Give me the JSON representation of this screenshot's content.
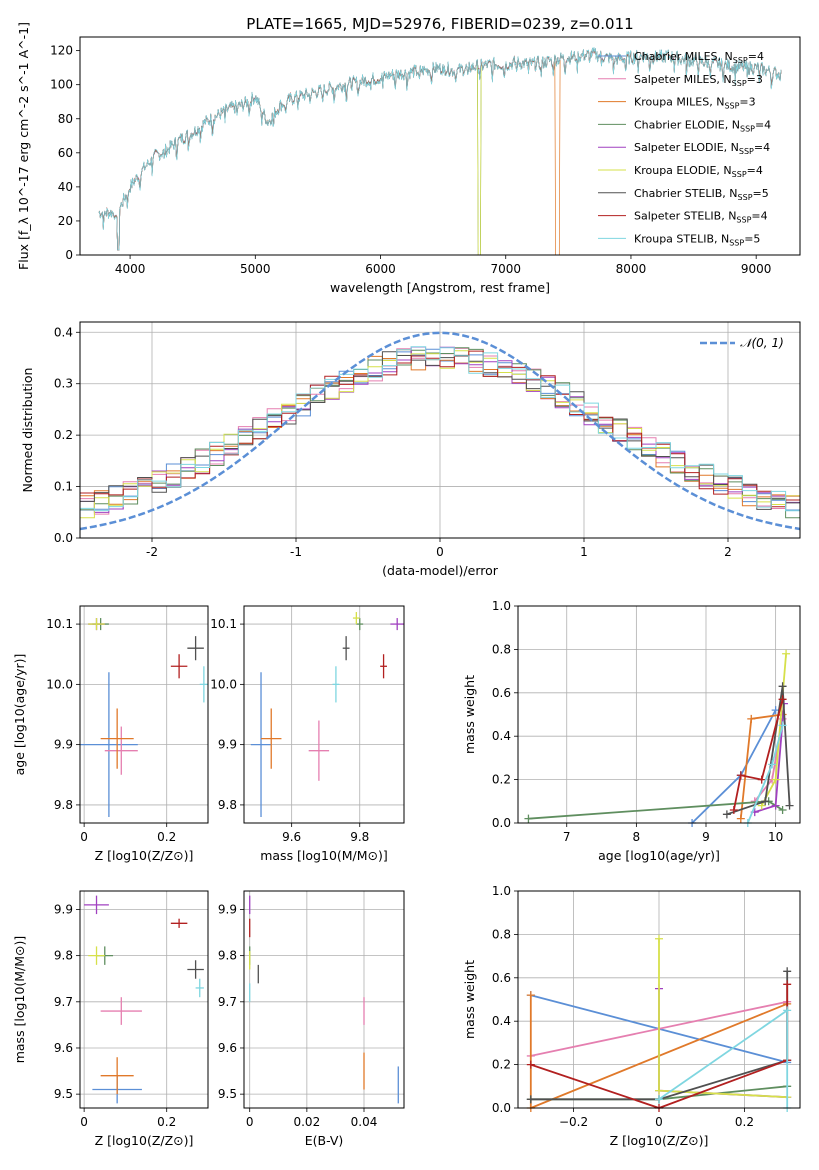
{
  "page": {
    "colors": {
      "chabrier_miles": "#5b8fd6",
      "salpeter_miles": "#e57fb0",
      "kroupa_miles": "#e0792a",
      "chabrier_elodie": "#5f8e5f",
      "salpeter_elodie": "#a040c0",
      "kroupa_elodie": "#d6e04a",
      "chabrier_stelib": "#505050",
      "salpeter_stelib": "#b22020",
      "kroupa_stelib": "#7fd6e0",
      "gauss": "#5b8fd6"
    }
  },
  "chart_data": [
    {
      "id": "spectrum",
      "type": "line",
      "title": "PLATE=1665, MJD=52976, FIBERID=0239, z=0.011",
      "xlabel": "wavelength [Angstrom, rest frame]",
      "ylabel": "Flux [f_λ 10^-17 erg cm^-2 s^-1 A^-1]",
      "xlim": [
        3600,
        9350
      ],
      "ylim": [
        0,
        128
      ],
      "xticks": [
        4000,
        5000,
        6000,
        7000,
        8000,
        9000
      ],
      "yticks": [
        0,
        20,
        40,
        60,
        80,
        100,
        120
      ],
      "legend_position": "top-right",
      "x": [
        3800,
        3900,
        4000,
        4100,
        4200,
        4300,
        4400,
        4500,
        4600,
        4700,
        4800,
        4900,
        5000,
        5100,
        5200,
        5300,
        5400,
        5500,
        5600,
        5700,
        5800,
        5900,
        6000,
        6100,
        6200,
        6300,
        6400,
        6500,
        6600,
        6700,
        6800,
        6900,
        7000,
        7100,
        7200,
        7300,
        7400,
        7500,
        7600,
        7700,
        7800,
        7900,
        8000,
        8100,
        8200,
        8300,
        8400,
        8500,
        8600,
        8700,
        8800,
        8900,
        9000,
        9100,
        9200
      ],
      "series": [
        {
          "name": "Chabrier MILES, N_SSP=4",
          "y": [
            25,
            25,
            40,
            50,
            58,
            62,
            68,
            72,
            78,
            82,
            86,
            88,
            93,
            78,
            88,
            92,
            94,
            96,
            98,
            100,
            101,
            103,
            104,
            106,
            107,
            108,
            109,
            110,
            108,
            110,
            111,
            112,
            112,
            113,
            112,
            113,
            115,
            116,
            117,
            118,
            116,
            115,
            116,
            117,
            116,
            117,
            115,
            114,
            113,
            112,
            111,
            110,
            110,
            108,
            106
          ]
        },
        {
          "name": "Salpeter MILES, N_SSP=3",
          "y": null
        },
        {
          "name": "Kroupa MILES, N_SSP=3",
          "y": null
        },
        {
          "name": "Chabrier ELODIE, N_SSP=4",
          "y": null
        },
        {
          "name": "Salpeter ELODIE, N_SSP=4",
          "y": null
        },
        {
          "name": "Kroupa ELODIE, N_SSP=4",
          "y": null
        },
        {
          "name": "Chabrier STELIB, N_SSP=5",
          "y": null
        },
        {
          "name": "Salpeter STELIB, N_SSP=4",
          "y": null
        },
        {
          "name": "Kroupa STELIB, N_SSP=5",
          "y": null
        }
      ]
    },
    {
      "id": "residuals",
      "type": "line",
      "xlabel": "(data-model)/error",
      "ylabel": "Normed distribution",
      "xlim": [
        -2.5,
        2.5
      ],
      "ylim": [
        0,
        0.42
      ],
      "xticks": [
        -2,
        -1,
        0,
        1,
        2
      ],
      "yticks": [
        0.0,
        0.1,
        0.2,
        0.3,
        0.4
      ],
      "grid": true,
      "legend": "𝒩(0, 1)",
      "legend_position": "top-right",
      "bins": [
        -2.5,
        -2.4,
        -2.3,
        -2.2,
        -2.1,
        -2.0,
        -1.9,
        -1.8,
        -1.7,
        -1.6,
        -1.5,
        -1.4,
        -1.3,
        -1.2,
        -1.1,
        -1.0,
        -0.9,
        -0.8,
        -0.7,
        -0.6,
        -0.5,
        -0.4,
        -0.3,
        -0.2,
        -0.1,
        0.0,
        0.1,
        0.2,
        0.3,
        0.4,
        0.5,
        0.6,
        0.7,
        0.8,
        0.9,
        1.0,
        1.1,
        1.2,
        1.3,
        1.4,
        1.5,
        1.6,
        1.7,
        1.8,
        1.9,
        2.0,
        2.1,
        2.2,
        2.3,
        2.4
      ]
    },
    {
      "id": "age-vs-z",
      "type": "scatter",
      "xlabel": "Z [log10(Z/Z⊙)]",
      "ylabel": "age  [log10(age/yr)]",
      "xlim": [
        -0.01,
        0.3
      ],
      "ylim": [
        9.77,
        10.13
      ],
      "xticks": [
        0.0,
        0.2
      ],
      "yticks": [
        9.8,
        9.9,
        10.0,
        10.1
      ],
      "grid": true,
      "points": [
        {
          "model": "chabrier_miles",
          "x": 0.06,
          "y": 9.9,
          "ex": 0.07,
          "ey": 0.12
        },
        {
          "model": "salpeter_miles",
          "x": 0.09,
          "y": 9.89,
          "ex": 0.04,
          "ey": 0.04
        },
        {
          "model": "kroupa_miles",
          "x": 0.08,
          "y": 9.91,
          "ex": 0.04,
          "ey": 0.05
        },
        {
          "model": "chabrier_elodie",
          "x": 0.04,
          "y": 10.1,
          "ex": 0.02,
          "ey": 0.01
        },
        {
          "model": "salpeter_elodie",
          "x": 0.03,
          "y": 10.1,
          "ex": 0.02,
          "ey": 0.01
        },
        {
          "model": "kroupa_elodie",
          "x": 0.03,
          "y": 10.1,
          "ex": 0.02,
          "ey": 0.01
        },
        {
          "model": "chabrier_stelib",
          "x": 0.27,
          "y": 10.06,
          "ex": 0.02,
          "ey": 0.02
        },
        {
          "model": "salpeter_stelib",
          "x": 0.23,
          "y": 10.03,
          "ex": 0.02,
          "ey": 0.02
        },
        {
          "model": "kroupa_stelib",
          "x": 0.29,
          "y": 10.0,
          "ex": 0.01,
          "ey": 0.03
        }
      ]
    },
    {
      "id": "age-vs-mass",
      "type": "scatter",
      "xlabel": "mass [log10(M/M⊙)]",
      "ylabel": "",
      "xlim": [
        9.46,
        9.93
      ],
      "ylim": [
        9.77,
        10.13
      ],
      "xticks": [
        9.6,
        9.8
      ],
      "yticks": [
        9.8,
        9.9,
        10.0,
        10.1
      ],
      "grid": true,
      "points": [
        {
          "model": "chabrier_miles",
          "x": 9.51,
          "y": 9.9,
          "ex": 0.03,
          "ey": 0.12
        },
        {
          "model": "salpeter_miles",
          "x": 9.68,
          "y": 9.89,
          "ex": 0.03,
          "ey": 0.05
        },
        {
          "model": "kroupa_miles",
          "x": 9.54,
          "y": 9.91,
          "ex": 0.03,
          "ey": 0.05
        },
        {
          "model": "chabrier_elodie",
          "x": 9.8,
          "y": 10.1,
          "ex": 0.01,
          "ey": 0.01
        },
        {
          "model": "salpeter_elodie",
          "x": 9.91,
          "y": 10.1,
          "ex": 0.02,
          "ey": 0.01
        },
        {
          "model": "kroupa_elodie",
          "x": 9.79,
          "y": 10.11,
          "ex": 0.01,
          "ey": 0.01
        },
        {
          "model": "chabrier_stelib",
          "x": 9.76,
          "y": 10.06,
          "ex": 0.01,
          "ey": 0.02
        },
        {
          "model": "salpeter_stelib",
          "x": 9.87,
          "y": 10.03,
          "ex": 0.01,
          "ey": 0.02
        },
        {
          "model": "kroupa_stelib",
          "x": 9.73,
          "y": 10.0,
          "ex": 0.01,
          "ey": 0.03
        }
      ]
    },
    {
      "id": "weight-vs-age",
      "type": "line",
      "xlabel": "age  [log10(age/yr)]",
      "ylabel": "mass weight",
      "xlim": [
        6.3,
        10.35
      ],
      "ylim": [
        0,
        1.0
      ],
      "xticks": [
        7,
        8,
        9,
        10
      ],
      "yticks": [
        0.0,
        0.2,
        0.4,
        0.6,
        0.8,
        1.0
      ],
      "grid": true,
      "series": [
        {
          "model": "chabrier_miles",
          "x": [
            8.8,
            9.5,
            10.0
          ],
          "y": [
            0.0,
            0.22,
            0.52
          ]
        },
        {
          "model": "salpeter_miles",
          "x": [
            9.7,
            9.95,
            10.1
          ],
          "y": [
            0.1,
            0.2,
            0.48
          ]
        },
        {
          "model": "kroupa_miles",
          "x": [
            9.5,
            9.65,
            10.1
          ],
          "y": [
            0.02,
            0.48,
            0.5
          ]
        },
        {
          "model": "chabrier_elodie",
          "x": [
            6.45,
            9.9,
            10.1
          ],
          "y": [
            0.02,
            0.1,
            0.06
          ]
        },
        {
          "model": "salpeter_elodie",
          "x": [
            9.7,
            10.0,
            10.12
          ],
          "y": [
            0.05,
            0.08,
            0.55
          ]
        },
        {
          "model": "kroupa_elodie",
          "x": [
            9.8,
            10.0,
            10.15
          ],
          "y": [
            0.08,
            0.2,
            0.78
          ]
        },
        {
          "model": "chabrier_stelib",
          "x": [
            9.3,
            9.85,
            10.1,
            10.2
          ],
          "y": [
            0.04,
            0.1,
            0.63,
            0.08
          ]
        },
        {
          "model": "salpeter_stelib",
          "x": [
            9.4,
            9.5,
            9.8,
            10.1
          ],
          "y": [
            0.06,
            0.22,
            0.2,
            0.57
          ]
        },
        {
          "model": "kroupa_stelib",
          "x": [
            9.6,
            9.95,
            10.1
          ],
          "y": [
            0.0,
            0.27,
            0.45
          ]
        }
      ]
    },
    {
      "id": "mass-vs-z",
      "type": "scatter",
      "xlabel": "Z [log10(Z/Z⊙)]",
      "ylabel": "mass [log10(M/M⊙)]",
      "xlim": [
        -0.01,
        0.3
      ],
      "ylim": [
        9.47,
        9.94
      ],
      "xticks": [
        0.0,
        0.2
      ],
      "yticks": [
        9.5,
        9.6,
        9.7,
        9.8,
        9.9
      ],
      "grid": true,
      "points": [
        {
          "model": "chabrier_miles",
          "x": 0.08,
          "y": 9.51,
          "ex": 0.06,
          "ey": 0.03
        },
        {
          "model": "salpeter_miles",
          "x": 0.09,
          "y": 9.68,
          "ex": 0.05,
          "ey": 0.03
        },
        {
          "model": "kroupa_miles",
          "x": 0.08,
          "y": 9.54,
          "ex": 0.04,
          "ey": 0.04
        },
        {
          "model": "chabrier_elodie",
          "x": 0.05,
          "y": 9.8,
          "ex": 0.02,
          "ey": 0.02
        },
        {
          "model": "salpeter_elodie",
          "x": 0.03,
          "y": 9.91,
          "ex": 0.03,
          "ey": 0.02
        },
        {
          "model": "kroupa_elodie",
          "x": 0.03,
          "y": 9.8,
          "ex": 0.02,
          "ey": 0.02
        },
        {
          "model": "chabrier_stelib",
          "x": 0.27,
          "y": 9.77,
          "ex": 0.02,
          "ey": 0.02
        },
        {
          "model": "salpeter_stelib",
          "x": 0.23,
          "y": 9.87,
          "ex": 0.02,
          "ey": 0.01
        },
        {
          "model": "kroupa_stelib",
          "x": 0.28,
          "y": 9.73,
          "ex": 0.01,
          "ey": 0.02
        }
      ]
    },
    {
      "id": "mass-vs-ebv",
      "type": "scatter",
      "xlabel": "E(B-V)",
      "ylabel": "",
      "xlim": [
        -0.002,
        0.054
      ],
      "ylim": [
        9.47,
        9.94
      ],
      "xticks": [
        0.0,
        0.02,
        0.04
      ],
      "yticks": [
        9.5,
        9.6,
        9.7,
        9.8,
        9.9
      ],
      "grid": true,
      "points": [
        {
          "model": "chabrier_miles",
          "x": 0.052,
          "y": 9.52,
          "ex": 0.0,
          "ey": 0.04
        },
        {
          "model": "salpeter_miles",
          "x": 0.04,
          "y": 9.68,
          "ex": 0.0,
          "ey": 0.03
        },
        {
          "model": "kroupa_miles",
          "x": 0.04,
          "y": 9.55,
          "ex": 0.0,
          "ey": 0.04
        },
        {
          "model": "chabrier_elodie",
          "x": 0.0,
          "y": 9.8,
          "ex": 0.0,
          "ey": 0.02
        },
        {
          "model": "salpeter_elodie",
          "x": 0.0,
          "y": 9.91,
          "ex": 0.0,
          "ey": 0.02
        },
        {
          "model": "kroupa_elodie",
          "x": 0.0,
          "y": 9.79,
          "ex": 0.0,
          "ey": 0.02
        },
        {
          "model": "chabrier_stelib",
          "x": 0.003,
          "y": 9.76,
          "ex": 0.0,
          "ey": 0.02
        },
        {
          "model": "salpeter_stelib",
          "x": 0.0,
          "y": 9.86,
          "ex": 0.0,
          "ey": 0.02
        },
        {
          "model": "kroupa_stelib",
          "x": 0.0,
          "y": 9.72,
          "ex": 0.0,
          "ey": 0.02
        }
      ]
    },
    {
      "id": "weight-vs-z",
      "type": "line",
      "xlabel": "Z [log10(Z/Z⊙)]",
      "ylabel": "mass weight",
      "xlim": [
        -0.33,
        0.33
      ],
      "ylim": [
        0,
        1.0
      ],
      "xticks": [
        -0.2,
        0.0,
        0.2
      ],
      "yticks": [
        0.0,
        0.2,
        0.4,
        0.6,
        0.8,
        1.0
      ],
      "grid": true,
      "series": [
        {
          "model": "chabrier_miles",
          "x": [
            -0.3,
            0.3
          ],
          "y": [
            0.52,
            0.21
          ]
        },
        {
          "model": "salpeter_miles",
          "x": [
            -0.3,
            0.3
          ],
          "y": [
            0.24,
            0.49
          ]
        },
        {
          "model": "kroupa_miles",
          "x": [
            -0.3,
            -0.3,
            0.3
          ],
          "y": [
            0.52,
            0.0,
            0.48
          ]
        },
        {
          "model": "chabrier_elodie",
          "x": [
            -0.3,
            0.0,
            0.3
          ],
          "y": [
            0.04,
            0.04,
            0.1
          ]
        },
        {
          "model": "salpeter_elodie",
          "x": [
            0.0,
            0.0,
            0.3
          ],
          "y": [
            0.55,
            0.08,
            0.05
          ]
        },
        {
          "model": "kroupa_elodie",
          "x": [
            0.0,
            0.0,
            0.3
          ],
          "y": [
            0.78,
            0.08,
            0.05
          ]
        },
        {
          "model": "chabrier_stelib",
          "x": [
            -0.3,
            0.0,
            0.3,
            0.3
          ],
          "y": [
            0.04,
            0.04,
            0.22,
            0.63
          ]
        },
        {
          "model": "salpeter_stelib",
          "x": [
            -0.3,
            0.0,
            0.3,
            0.3
          ],
          "y": [
            0.2,
            0.0,
            0.22,
            0.57
          ]
        },
        {
          "model": "kroupa_stelib",
          "x": [
            0.0,
            0.3,
            0.3
          ],
          "y": [
            0.04,
            0.45,
            0.0
          ]
        }
      ]
    }
  ],
  "legend": [
    {
      "model": "chabrier_miles",
      "label": "Chabrier MILES, N",
      "sub": "SSP",
      "tail": "=4"
    },
    {
      "model": "salpeter_miles",
      "label": "Salpeter MILES, N",
      "sub": "SSP",
      "tail": "=3"
    },
    {
      "model": "kroupa_miles",
      "label": "Kroupa MILES, N",
      "sub": "SSP",
      "tail": "=3"
    },
    {
      "model": "chabrier_elodie",
      "label": "Chabrier ELODIE, N",
      "sub": "SSP",
      "tail": "=4"
    },
    {
      "model": "salpeter_elodie",
      "label": "Salpeter ELODIE, N",
      "sub": "SSP",
      "tail": "=4"
    },
    {
      "model": "kroupa_elodie",
      "label": "Kroupa ELODIE, N",
      "sub": "SSP",
      "tail": "=4"
    },
    {
      "model": "chabrier_stelib",
      "label": "Chabrier STELIB, N",
      "sub": "SSP",
      "tail": "=5"
    },
    {
      "model": "salpeter_stelib",
      "label": "Salpeter STELIB, N",
      "sub": "SSP",
      "tail": "=4"
    },
    {
      "model": "kroupa_stelib",
      "label": "Kroupa STELIB, N",
      "sub": "SSP",
      "tail": "=5"
    }
  ]
}
